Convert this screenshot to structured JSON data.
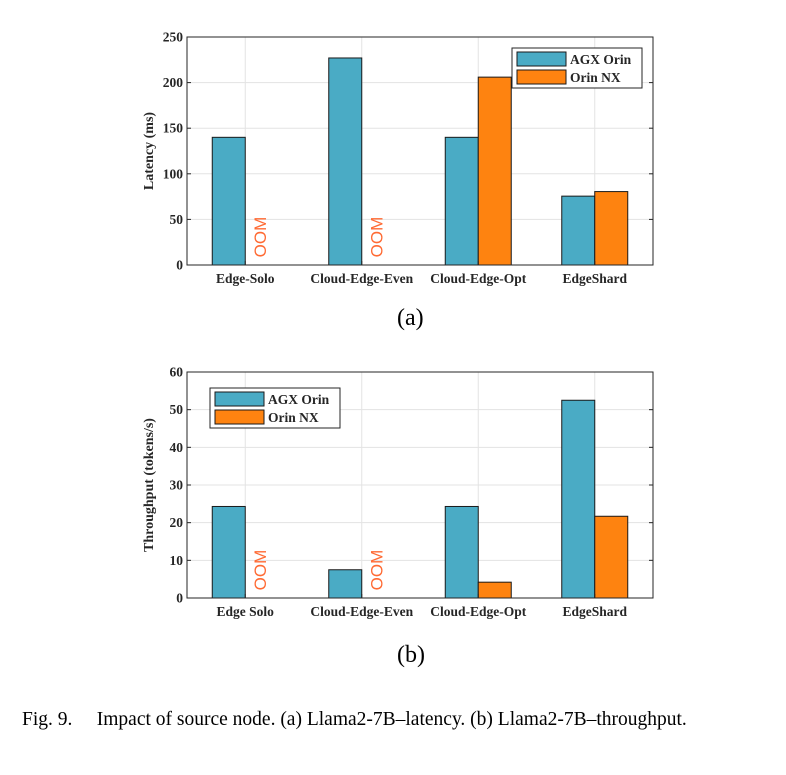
{
  "chart_data": [
    {
      "type": "bar",
      "panel_label": "(a)",
      "categories": [
        "Edge-Solo",
        "Cloud-Edge-Even",
        "Cloud-Edge-Opt",
        "EdgeShard"
      ],
      "series": [
        {
          "name": "AGX Orin",
          "color": "#4aabc5",
          "values": [
            140,
            227,
            140,
            75.5
          ]
        },
        {
          "name": "Orin NX",
          "color": "#fe8310",
          "values": [
            null,
            null,
            206,
            80.5
          ]
        }
      ],
      "annotations": [
        {
          "text": "OOM",
          "category": "Edge-Solo",
          "series": "Orin NX"
        },
        {
          "text": "OOM",
          "category": "Cloud-Edge-Even",
          "series": "Orin NX"
        }
      ],
      "title": "",
      "xlabel": "",
      "ylabel": "Latency (ms)",
      "ylim": [
        0,
        250
      ],
      "yticks": [
        0,
        50,
        100,
        150,
        200,
        250
      ],
      "grid": true,
      "legend_position": "top-right"
    },
    {
      "type": "bar",
      "panel_label": "(b)",
      "categories": [
        "Edge Solo",
        "Cloud-Edge-Even",
        "Cloud-Edge-Opt",
        "EdgeShard"
      ],
      "series": [
        {
          "name": "AGX Orin",
          "color": "#4aabc5",
          "values": [
            24.3,
            7.5,
            24.3,
            52.5
          ]
        },
        {
          "name": "Orin NX",
          "color": "#fe8310",
          "values": [
            null,
            null,
            4.2,
            21.7
          ]
        }
      ],
      "annotations": [
        {
          "text": "OOM",
          "category": "Edge Solo",
          "series": "Orin NX"
        },
        {
          "text": "OOM",
          "category": "Cloud-Edge-Even",
          "series": "Orin NX"
        }
      ],
      "title": "",
      "xlabel": "",
      "ylabel": "Throughput (tokens/s)",
      "ylim": [
        0,
        60
      ],
      "yticks": [
        0,
        10,
        20,
        30,
        40,
        50,
        60
      ],
      "grid": true,
      "legend_position": "top-left"
    }
  ],
  "caption": "Fig. 9.  Impact of source node. (a) Llama2-7B–latency. (b) Llama2-7B–throughput."
}
